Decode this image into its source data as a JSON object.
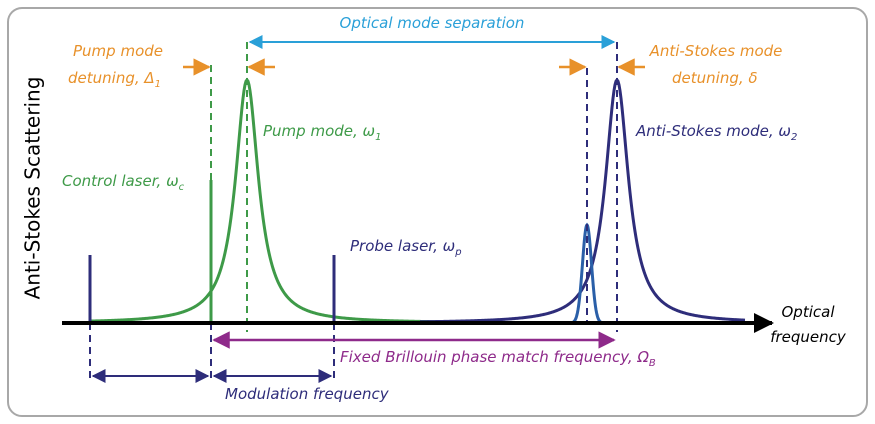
{
  "y_axis_label": "Anti-Stokes Scattering",
  "x_axis_label": [
    "Optical",
    "frequency"
  ],
  "optical_mode_separation": "Optical mode separation",
  "pump_detuning": {
    "line1": "Pump mode",
    "line2": "detuning, ",
    "symbol": "Δ",
    "sub": "1"
  },
  "anti_stokes_detuning": {
    "line1": "Anti-Stokes mode",
    "line2": "detuning, ",
    "symbol": "δ"
  },
  "pump_mode": {
    "text": "Pump mode, ",
    "symbol": "ω",
    "sub": "1"
  },
  "anti_stokes_mode": {
    "text": "Anti-Stokes mode, ",
    "symbol": "ω",
    "sub": "2"
  },
  "control_laser": {
    "text": "Control laser, ",
    "symbol": "ω",
    "sub": "c"
  },
  "probe_laser": {
    "text": "Probe laser, ",
    "symbol": "ω",
    "sub": "p"
  },
  "brillouin": {
    "text": "Fixed Brillouin phase match frequency, ",
    "symbol": "Ω",
    "sub": "B"
  },
  "modulation_frequency": "Modulation frequency"
}
